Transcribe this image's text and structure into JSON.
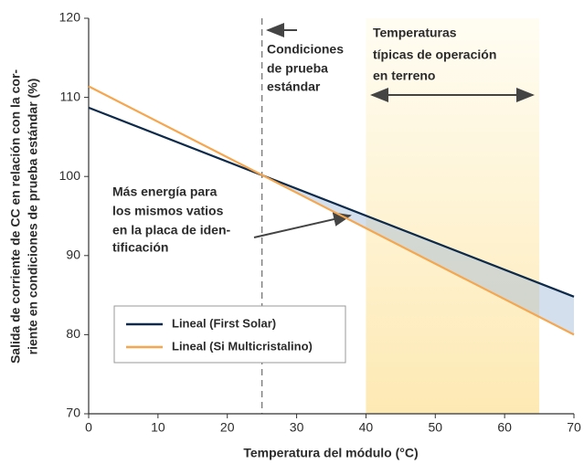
{
  "chart_data": {
    "type": "line",
    "xlabel": "Temperatura del módulo (°C)",
    "ylabel": [
      "Salida de corriente de CC en relación con la cor-",
      "riente en condiciones de prueba estándar (%)"
    ],
    "x": [
      0,
      70
    ],
    "series": [
      {
        "name": "Lineal (First Solar)",
        "color": "#0d2a4a",
        "values": [
          108.7,
          84.8
        ]
      },
      {
        "name": "Lineal (Si Multicristalino)",
        "color": "#f5a64e",
        "values": [
          111.4,
          80
        ]
      }
    ],
    "xlim": [
      0,
      70
    ],
    "xticks": [
      0,
      10,
      20,
      30,
      40,
      50,
      60,
      70
    ],
    "ylim": [
      70,
      120
    ],
    "yticks": [
      70,
      80,
      90,
      100,
      110,
      120
    ],
    "reference_x": 25,
    "shaded_range": [
      40,
      65
    ],
    "annotations": {
      "stc": [
        "Condiciones",
        "de prueba",
        "estándar"
      ],
      "field": [
        "Temperaturas",
        "típicas de operación",
        "en terreno"
      ],
      "energy": [
        "Más energía para",
        "los mismos vatios",
        "en la placa de iden-",
        "tificación"
      ]
    }
  }
}
